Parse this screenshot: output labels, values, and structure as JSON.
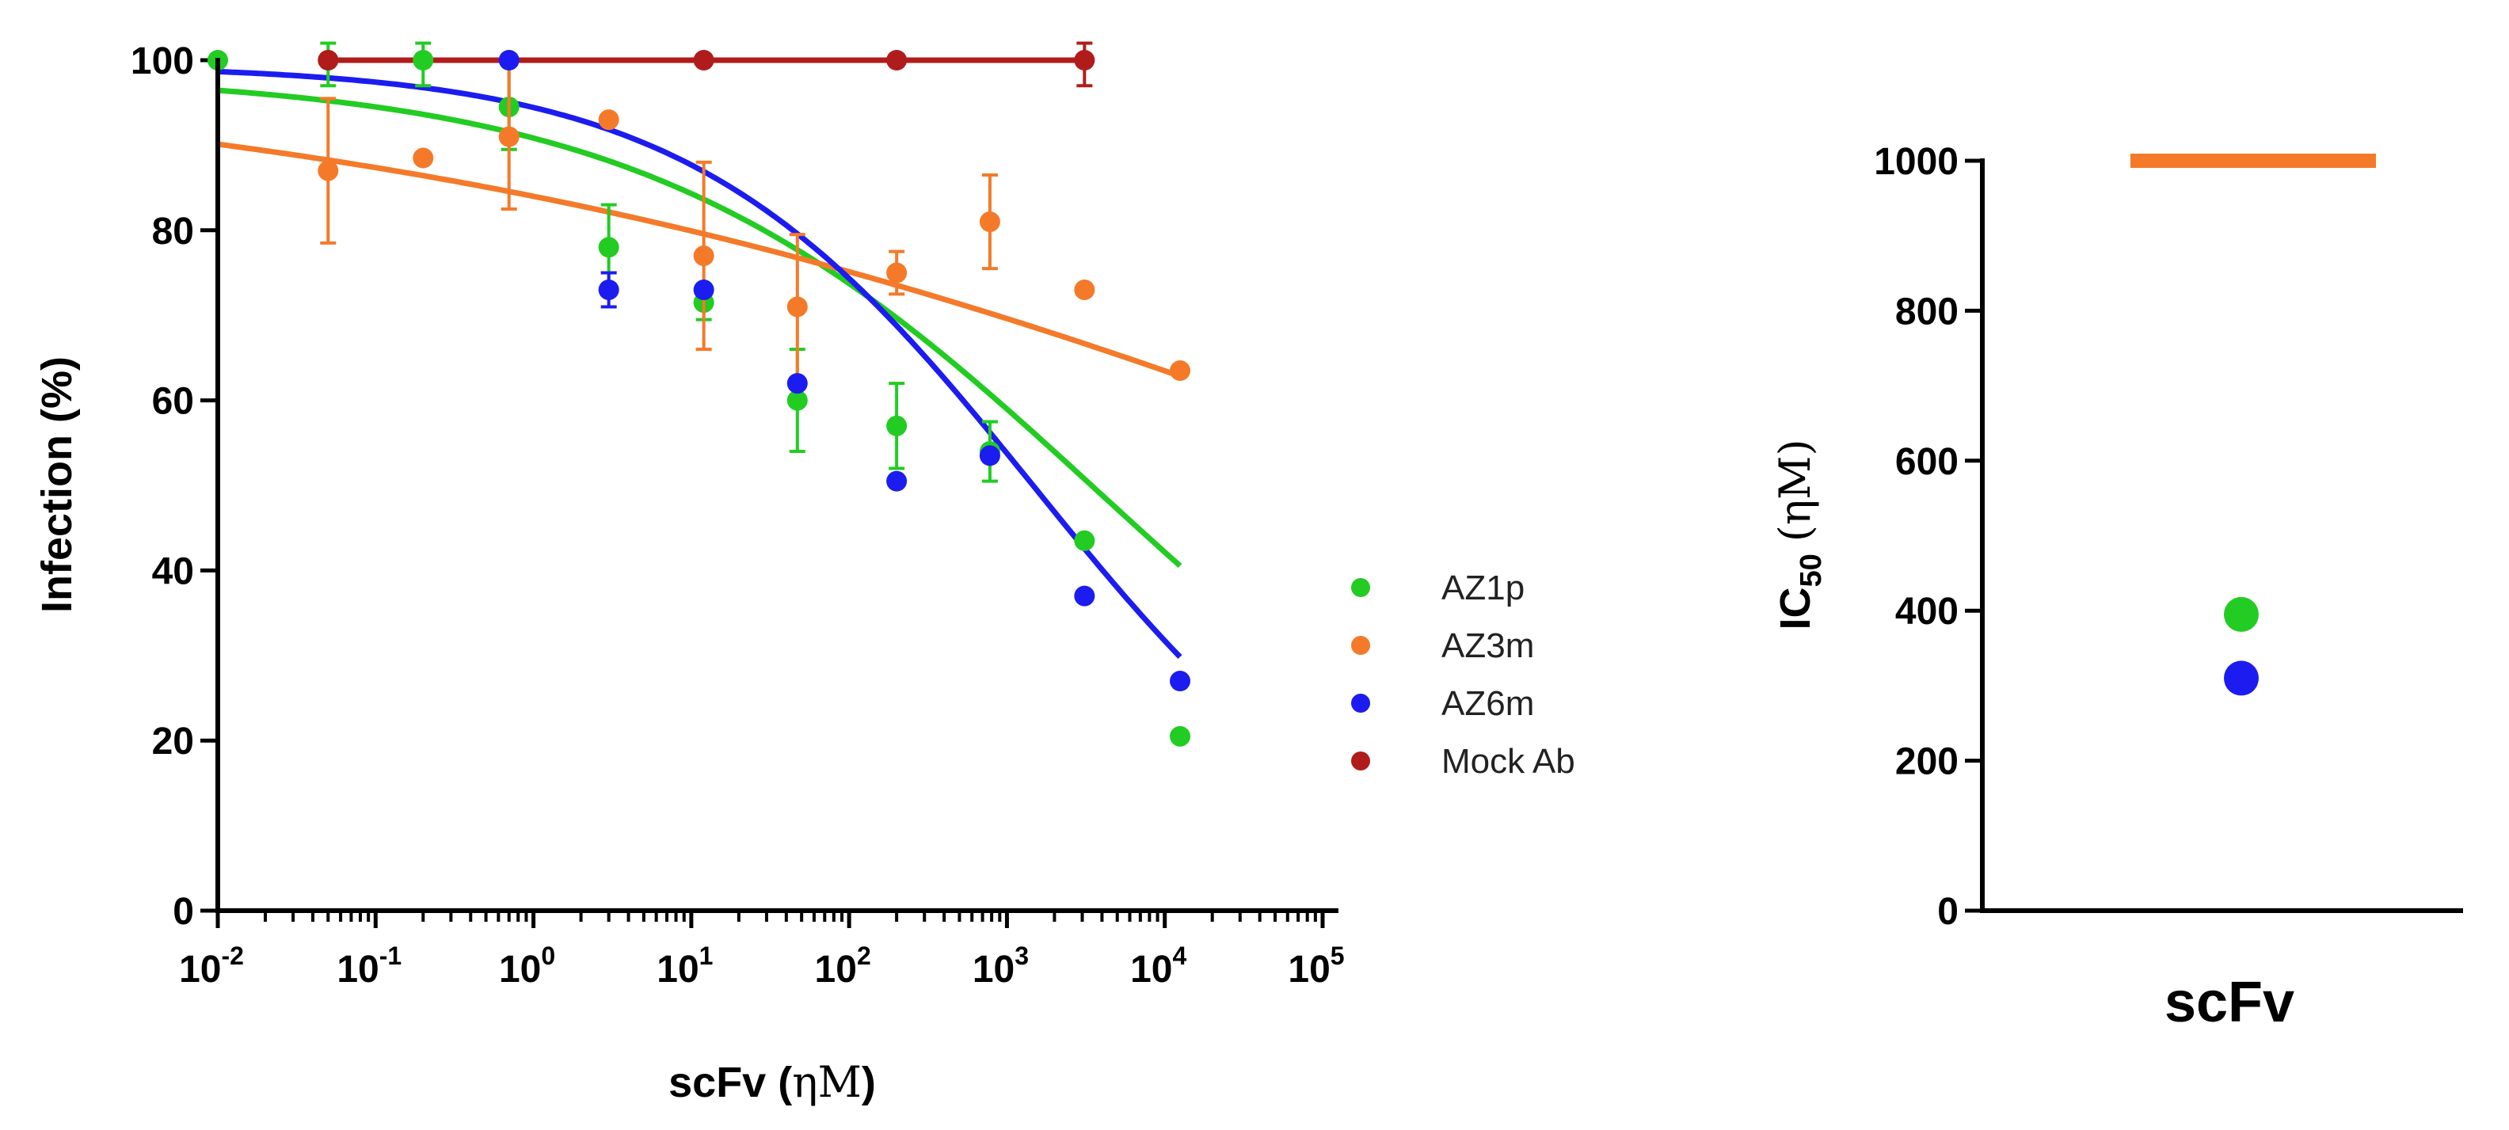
{
  "chart_data": [
    {
      "type": "scatter",
      "xscale": "log",
      "xlim": [
        0.01,
        100000
      ],
      "ylim": [
        0,
        100
      ],
      "xlabel": "scFv",
      "xlabel_unit": "ηM",
      "ylabel": "Infection (%)",
      "y_ticks": [
        0,
        20,
        40,
        60,
        80,
        100
      ],
      "x_ticks": [
        {
          "base": "10",
          "exp": "-2",
          "value": 0.01
        },
        {
          "base": "10",
          "exp": "-1",
          "value": 0.1
        },
        {
          "base": "10",
          "exp": "0",
          "value": 1
        },
        {
          "base": "10",
          "exp": "1",
          "value": 10
        },
        {
          "base": "10",
          "exp": "2",
          "value": 100
        },
        {
          "base": "10",
          "exp": "3",
          "value": 1000
        },
        {
          "base": "10",
          "exp": "4",
          "value": 10000
        },
        {
          "base": "10",
          "exp": "5",
          "value": 100000
        }
      ],
      "legend_position": "right",
      "series": [
        {
          "name": "AZ1p",
          "color": "#22cc22",
          "points": [
            {
              "x": 0.01,
              "y": 100,
              "err": 0
            },
            {
              "x": 0.05,
              "y": 100,
              "err": 3
            },
            {
              "x": 0.2,
              "y": 100,
              "err": 3
            },
            {
              "x": 0.7,
              "y": 94.5,
              "err": 5
            },
            {
              "x": 3,
              "y": 78,
              "err": 5
            },
            {
              "x": 12,
              "y": 71.5,
              "err": 2
            },
            {
              "x": 47,
              "y": 60,
              "err": 6
            },
            {
              "x": 200,
              "y": 57,
              "err": 5
            },
            {
              "x": 780,
              "y": 54,
              "err": 3.5
            },
            {
              "x": 3100,
              "y": 43.5,
              "err": 0
            },
            {
              "x": 12500,
              "y": 20.5,
              "err": 0
            }
          ],
          "fit": {
            "top": 98.5,
            "bottom": 0,
            "ic50": 3800,
            "hill": 0.3
          }
        },
        {
          "name": "AZ3m",
          "color": "#f47a2a",
          "points": [
            {
              "x": 0.05,
              "y": 87,
              "err": 8.5
            },
            {
              "x": 0.2,
              "y": 88.5,
              "err": 0
            },
            {
              "x": 0.7,
              "y": 91,
              "err": 8.5
            },
            {
              "x": 3,
              "y": 93,
              "err": 0
            },
            {
              "x": 12,
              "y": 77,
              "err": 11
            },
            {
              "x": 47,
              "y": 71,
              "err": 8.5
            },
            {
              "x": 200,
              "y": 75,
              "err": 2.5
            },
            {
              "x": 780,
              "y": 81,
              "err": 5.5
            },
            {
              "x": 3100,
              "y": 73,
              "err": 0
            },
            {
              "x": 12500,
              "y": 63.5,
              "err": 0
            }
          ],
          "fit": {
            "top": 100,
            "bottom": 0,
            "ic50": 1000000,
            "hill": 0.12
          }
        },
        {
          "name": "AZ6m",
          "color": "#1c1cf0",
          "points": [
            {
              "x": 0.7,
              "y": 100,
              "err": 0
            },
            {
              "x": 3,
              "y": 73,
              "err": 2
            },
            {
              "x": 12,
              "y": 73,
              "err": 0
            },
            {
              "x": 47,
              "y": 62,
              "err": 0
            },
            {
              "x": 200,
              "y": 50.5,
              "err": 0
            },
            {
              "x": 780,
              "y": 53.5,
              "err": 0
            },
            {
              "x": 3100,
              "y": 37,
              "err": 0
            },
            {
              "x": 12500,
              "y": 27,
              "err": 0
            }
          ],
          "fit": {
            "top": 99.5,
            "bottom": 0,
            "ic50": 1500,
            "hill": 0.4
          }
        },
        {
          "name": "Mock Ab",
          "color": "#b01c1c",
          "points": [
            {
              "x": 0.05,
              "y": 100,
              "err": 0
            },
            {
              "x": 12,
              "y": 100,
              "err": 0
            },
            {
              "x": 200,
              "y": 100,
              "err": 0
            },
            {
              "x": 3100,
              "y": 100,
              "err": 3
            }
          ],
          "fit": {
            "flat": 100,
            "xmin": 0.05,
            "xmax": 3100
          }
        }
      ]
    },
    {
      "type": "scatter",
      "category": "scFv",
      "ylabel": "IC",
      "ylabel_sub": "50",
      "ylabel_unit": "(ηM)",
      "ylim": [
        0,
        1000
      ],
      "y_ticks": [
        0,
        200,
        400,
        600,
        800,
        1000
      ],
      "points": [
        {
          "series": "AZ1p",
          "color": "#22cc22",
          "y": 395,
          "mark": "dot"
        },
        {
          "series": "AZ6m",
          "color": "#1c1cf0",
          "y": 310,
          "mark": "dot"
        },
        {
          "series": "AZ3m",
          "color": "#f47a2a",
          "y": 1000,
          "mark": "bar"
        }
      ]
    }
  ]
}
